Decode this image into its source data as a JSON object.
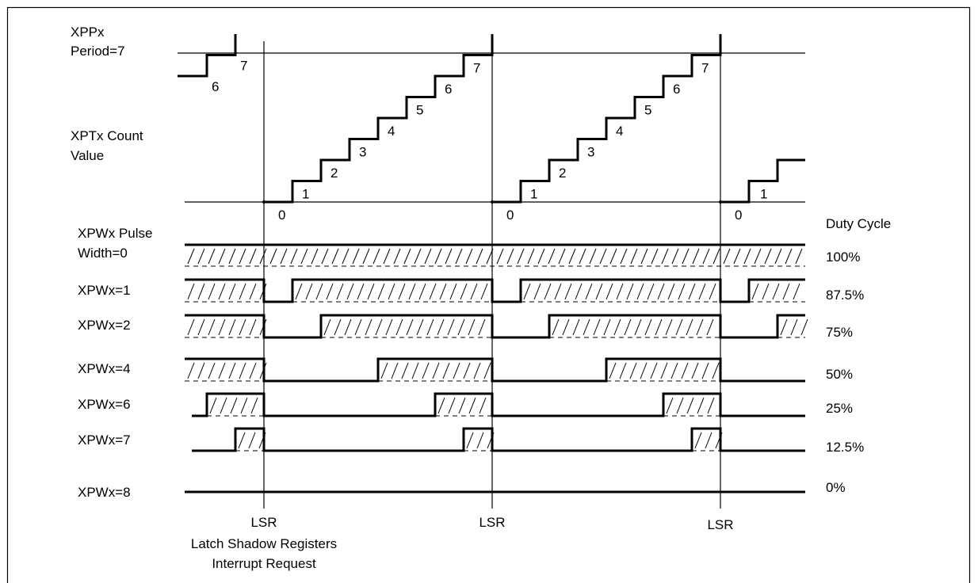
{
  "frame_labels": {
    "period_line1": "XPPx",
    "period_line2": "Period=7",
    "count_line1": "XPTx Count",
    "count_line2": "Value",
    "duty_cycle_header": "Duty Cycle"
  },
  "counter": {
    "period": 7,
    "first_steps": [
      "6",
      "7"
    ],
    "cycle_steps": [
      "0",
      "1",
      "2",
      "3",
      "4",
      "5",
      "6",
      "7"
    ],
    "last_steps": [
      "0",
      "1"
    ]
  },
  "pulse_rows": [
    {
      "label_line1": "XPWx Pulse",
      "label_line2": "Width=0",
      "pw": 0,
      "duty": "100%"
    },
    {
      "label_line1": "XPWx=1",
      "label_line2": "",
      "pw": 1,
      "duty": "87.5%"
    },
    {
      "label_line1": "XPWx=2",
      "label_line2": "",
      "pw": 2,
      "duty": "75%"
    },
    {
      "label_line1": "XPWx=4",
      "label_line2": "",
      "pw": 4,
      "duty": "50%"
    },
    {
      "label_line1": "XPWx=6",
      "label_line2": "",
      "pw": 6,
      "duty": "25%"
    },
    {
      "label_line1": "XPWx=7",
      "label_line2": "",
      "pw": 7,
      "duty": "12.5%"
    },
    {
      "label_line1": "XPWx=8",
      "label_line2": "",
      "pw": 8,
      "duty": "0%"
    }
  ],
  "markers": {
    "lsr": "LSR",
    "caption_line1": "Latch Shadow Registers",
    "caption_line2": "Interrupt Request"
  }
}
